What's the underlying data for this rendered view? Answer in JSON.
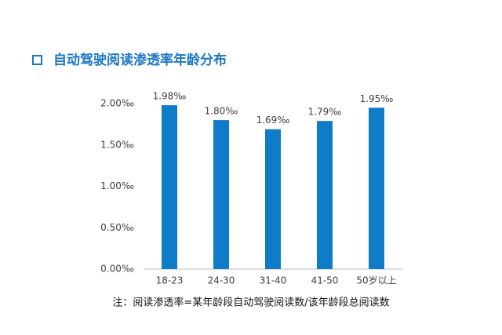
{
  "chart_data": {
    "type": "bar",
    "title": "自动驾驶阅读渗透率年龄分布",
    "categories": [
      "18-23",
      "24-30",
      "31-40",
      "41-50",
      "50岁以上"
    ],
    "values": [
      1.98,
      1.8,
      1.69,
      1.79,
      1.95
    ],
    "value_labels": [
      "1.98‰",
      "1.80‰",
      "1.69‰",
      "1.79‰",
      "1.95‰"
    ],
    "color": "#0f7cc7",
    "ylim": [
      0,
      2
    ],
    "yticks": [
      {
        "value": 0,
        "label": "0.00‰"
      },
      {
        "value": 0.5,
        "label": "0.50‰"
      },
      {
        "value": 1,
        "label": "1.00‰"
      },
      {
        "value": 1.5,
        "label": "1.50‰"
      },
      {
        "value": 2,
        "label": "2.00‰"
      }
    ],
    "annotation": "注：阅读渗透率=某年龄段自动驾驶阅读数/该年龄段总阅读数"
  }
}
